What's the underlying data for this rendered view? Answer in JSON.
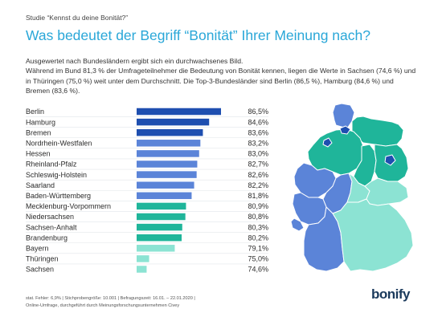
{
  "header": {
    "kicker": "Studie “Kennst du deine Bonität?”",
    "title": "Was bedeutet der Begriff “Bonität” Ihrer Meinung nach?",
    "intro_line1": "Ausgewertet nach Bundesländern ergibt sich ein durchwachsenes Bild.",
    "intro_line2": "Während im Bund 81,3 % der Umfrageteilnehmer die Bedeutung von Bonität kennen, liegen die Werte in Sachsen (74,6 %) und in Thüringen (75,0 %) weit unter dem Durchschnitt. Die Top-3-Bundesländer sind Berlin (86,5 %), Hamburg (84,6 %) und Bremen (83,6 %)."
  },
  "chart_data": {
    "type": "bar",
    "orientation": "horizontal",
    "categories": [
      "Berlin",
      "Hamburg",
      "Bremen",
      "Nordrhein-Westfalen",
      "Hessen",
      "Rheinland-Pfalz",
      "Schleswig-Holstein",
      "Saarland",
      "Baden-Württemberg",
      "Mecklenburg-Vorpommern",
      "Niedersachsen",
      "Sachsen-Anhalt",
      "Brandenburg",
      "Bayern",
      "Thüringen",
      "Sachsen"
    ],
    "values": [
      86.5,
      84.6,
      83.6,
      83.2,
      83.0,
      82.7,
      82.6,
      82.2,
      81.8,
      80.9,
      80.8,
      80.3,
      80.2,
      79.1,
      75.0,
      74.6
    ],
    "value_labels": [
      "86,5%",
      "84,6%",
      "83,6%",
      "83,2%",
      "83,0%",
      "82,7%",
      "82,6%",
      "82,2%",
      "81,8%",
      "80,9%",
      "80,8%",
      "80,3%",
      "80,2%",
      "79,1%",
      "75,0%",
      "74,6%"
    ],
    "groups": [
      1,
      1,
      1,
      2,
      2,
      2,
      2,
      2,
      2,
      3,
      3,
      3,
      3,
      4,
      4,
      4
    ],
    "group_colors": {
      "1": "#1e4fb0",
      "2": "#5b84d8",
      "3": "#1fb59a",
      "4": "#8ce3d3"
    },
    "value_axis_min": 73
  },
  "footer": {
    "line1": "stat. Fehler: 6,9% | Stichprobengröße: 10.001 | Befragungszeit: 16.01. – 22.01.2020 |",
    "line2": "Online-Umfrage, durchgeführt durch Meinungsforschungsunternehmen Civey"
  },
  "logo": {
    "text": "bonify"
  }
}
